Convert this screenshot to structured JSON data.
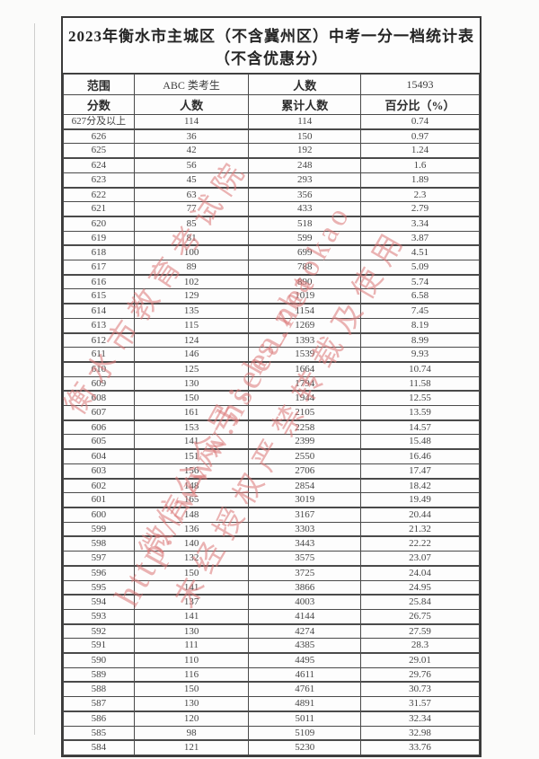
{
  "document": {
    "title_line1": "2023年衡水市主城区（不含冀州区）中考一分一档统计表",
    "title_line2": "（不含优惠分）"
  },
  "summary": {
    "range_label": "范围",
    "candidate_type": "ABC 类考生",
    "count_label": "人数",
    "total_count": "15493"
  },
  "table": {
    "headers": [
      "分数",
      "人数",
      "累计人数",
      "百分比（%）"
    ],
    "rows": [
      [
        "627分及以上",
        "114",
        "114",
        "0.74"
      ],
      [
        "626",
        "36",
        "150",
        "0.97"
      ],
      [
        "625",
        "42",
        "192",
        "1.24"
      ],
      [
        "624",
        "56",
        "248",
        "1.6"
      ],
      [
        "623",
        "45",
        "293",
        "1.89"
      ],
      [
        "622",
        "63",
        "356",
        "2.3"
      ],
      [
        "621",
        "77",
        "433",
        "2.79"
      ],
      [
        "620",
        "85",
        "518",
        "3.34"
      ],
      [
        "619",
        "81",
        "599",
        "3.87"
      ],
      [
        "618",
        "100",
        "699",
        "4.51"
      ],
      [
        "617",
        "89",
        "788",
        "5.09"
      ],
      [
        "616",
        "102",
        "890",
        "5.74"
      ],
      [
        "615",
        "129",
        "1019",
        "6.58"
      ],
      [
        "614",
        "135",
        "1154",
        "7.45"
      ],
      [
        "613",
        "115",
        "1269",
        "8.19"
      ],
      [
        "612",
        "124",
        "1393",
        "8.99"
      ],
      [
        "611",
        "146",
        "1539",
        "9.93"
      ],
      [
        "610",
        "125",
        "1664",
        "10.74"
      ],
      [
        "609",
        "130",
        "1794",
        "11.58"
      ],
      [
        "608",
        "150",
        "1944",
        "12.55"
      ],
      [
        "607",
        "161",
        "2105",
        "13.59"
      ],
      [
        "606",
        "153",
        "2258",
        "14.57"
      ],
      [
        "605",
        "141",
        "2399",
        "15.48"
      ],
      [
        "604",
        "151",
        "2550",
        "16.46"
      ],
      [
        "603",
        "156",
        "2706",
        "17.47"
      ],
      [
        "602",
        "148",
        "2854",
        "18.42"
      ],
      [
        "601",
        "165",
        "3019",
        "19.49"
      ],
      [
        "600",
        "148",
        "3167",
        "20.44"
      ],
      [
        "599",
        "136",
        "3303",
        "21.32"
      ],
      [
        "598",
        "140",
        "3443",
        "22.22"
      ],
      [
        "597",
        "132",
        "3575",
        "23.07"
      ],
      [
        "596",
        "150",
        "3725",
        "24.04"
      ],
      [
        "595",
        "141",
        "3866",
        "24.95"
      ],
      [
        "594",
        "137",
        "4003",
        "25.84"
      ],
      [
        "593",
        "141",
        "4144",
        "26.75"
      ],
      [
        "592",
        "130",
        "4274",
        "27.59"
      ],
      [
        "591",
        "111",
        "4385",
        "28.3"
      ],
      [
        "590",
        "110",
        "4495",
        "29.01"
      ],
      [
        "589",
        "116",
        "4611",
        "29.76"
      ],
      [
        "588",
        "150",
        "4761",
        "30.73"
      ],
      [
        "587",
        "130",
        "4891",
        "31.57"
      ],
      [
        "586",
        "120",
        "5011",
        "32.34"
      ],
      [
        "585",
        "98",
        "5109",
        "32.98"
      ],
      [
        "584",
        "121",
        "5230",
        "33.76"
      ]
    ]
  },
  "watermark": {
    "color": "#db7676",
    "lines": [
      "衡水市教育考试院",
      "http://www.hseea.net",
      "微信公众号：hs_zhaokao",
      "未经授权严禁转载及使用"
    ]
  }
}
